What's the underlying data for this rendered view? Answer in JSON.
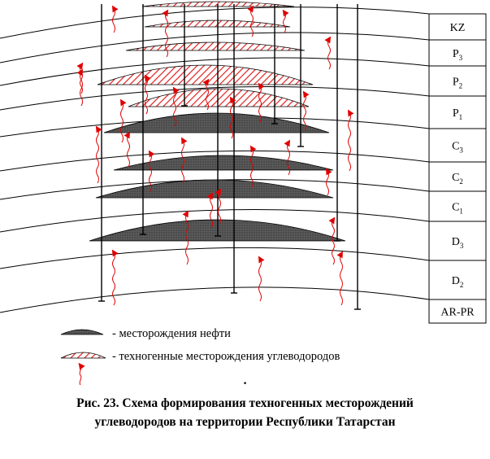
{
  "strata": [
    {
      "label": "KZ"
    },
    {
      "label": "P",
      "sub": "3"
    },
    {
      "label": "P",
      "sub": "2"
    },
    {
      "label": "P",
      "sub": "1"
    },
    {
      "label": "C",
      "sub": "3"
    },
    {
      "label": "C",
      "sub": "2"
    },
    {
      "label": "C",
      "sub": "1"
    },
    {
      "label": "D",
      "sub": "3"
    },
    {
      "label": "D",
      "sub": "2"
    },
    {
      "label": "AR-PR"
    }
  ],
  "legend": {
    "oil": "- месторождения нефти",
    "technogenic": "- техногенные месторождения углеводородов"
  },
  "caption": {
    "dot": ".",
    "line1": "Рис. 23. Схема формирования техногенных месторождений",
    "line2": "углеводородов на территории Республики Татарстан"
  },
  "colors": {
    "oil_fill": "#555555",
    "technogenic_hatch": "#e02020",
    "arrow": "#e00000",
    "lines": "#000000"
  }
}
